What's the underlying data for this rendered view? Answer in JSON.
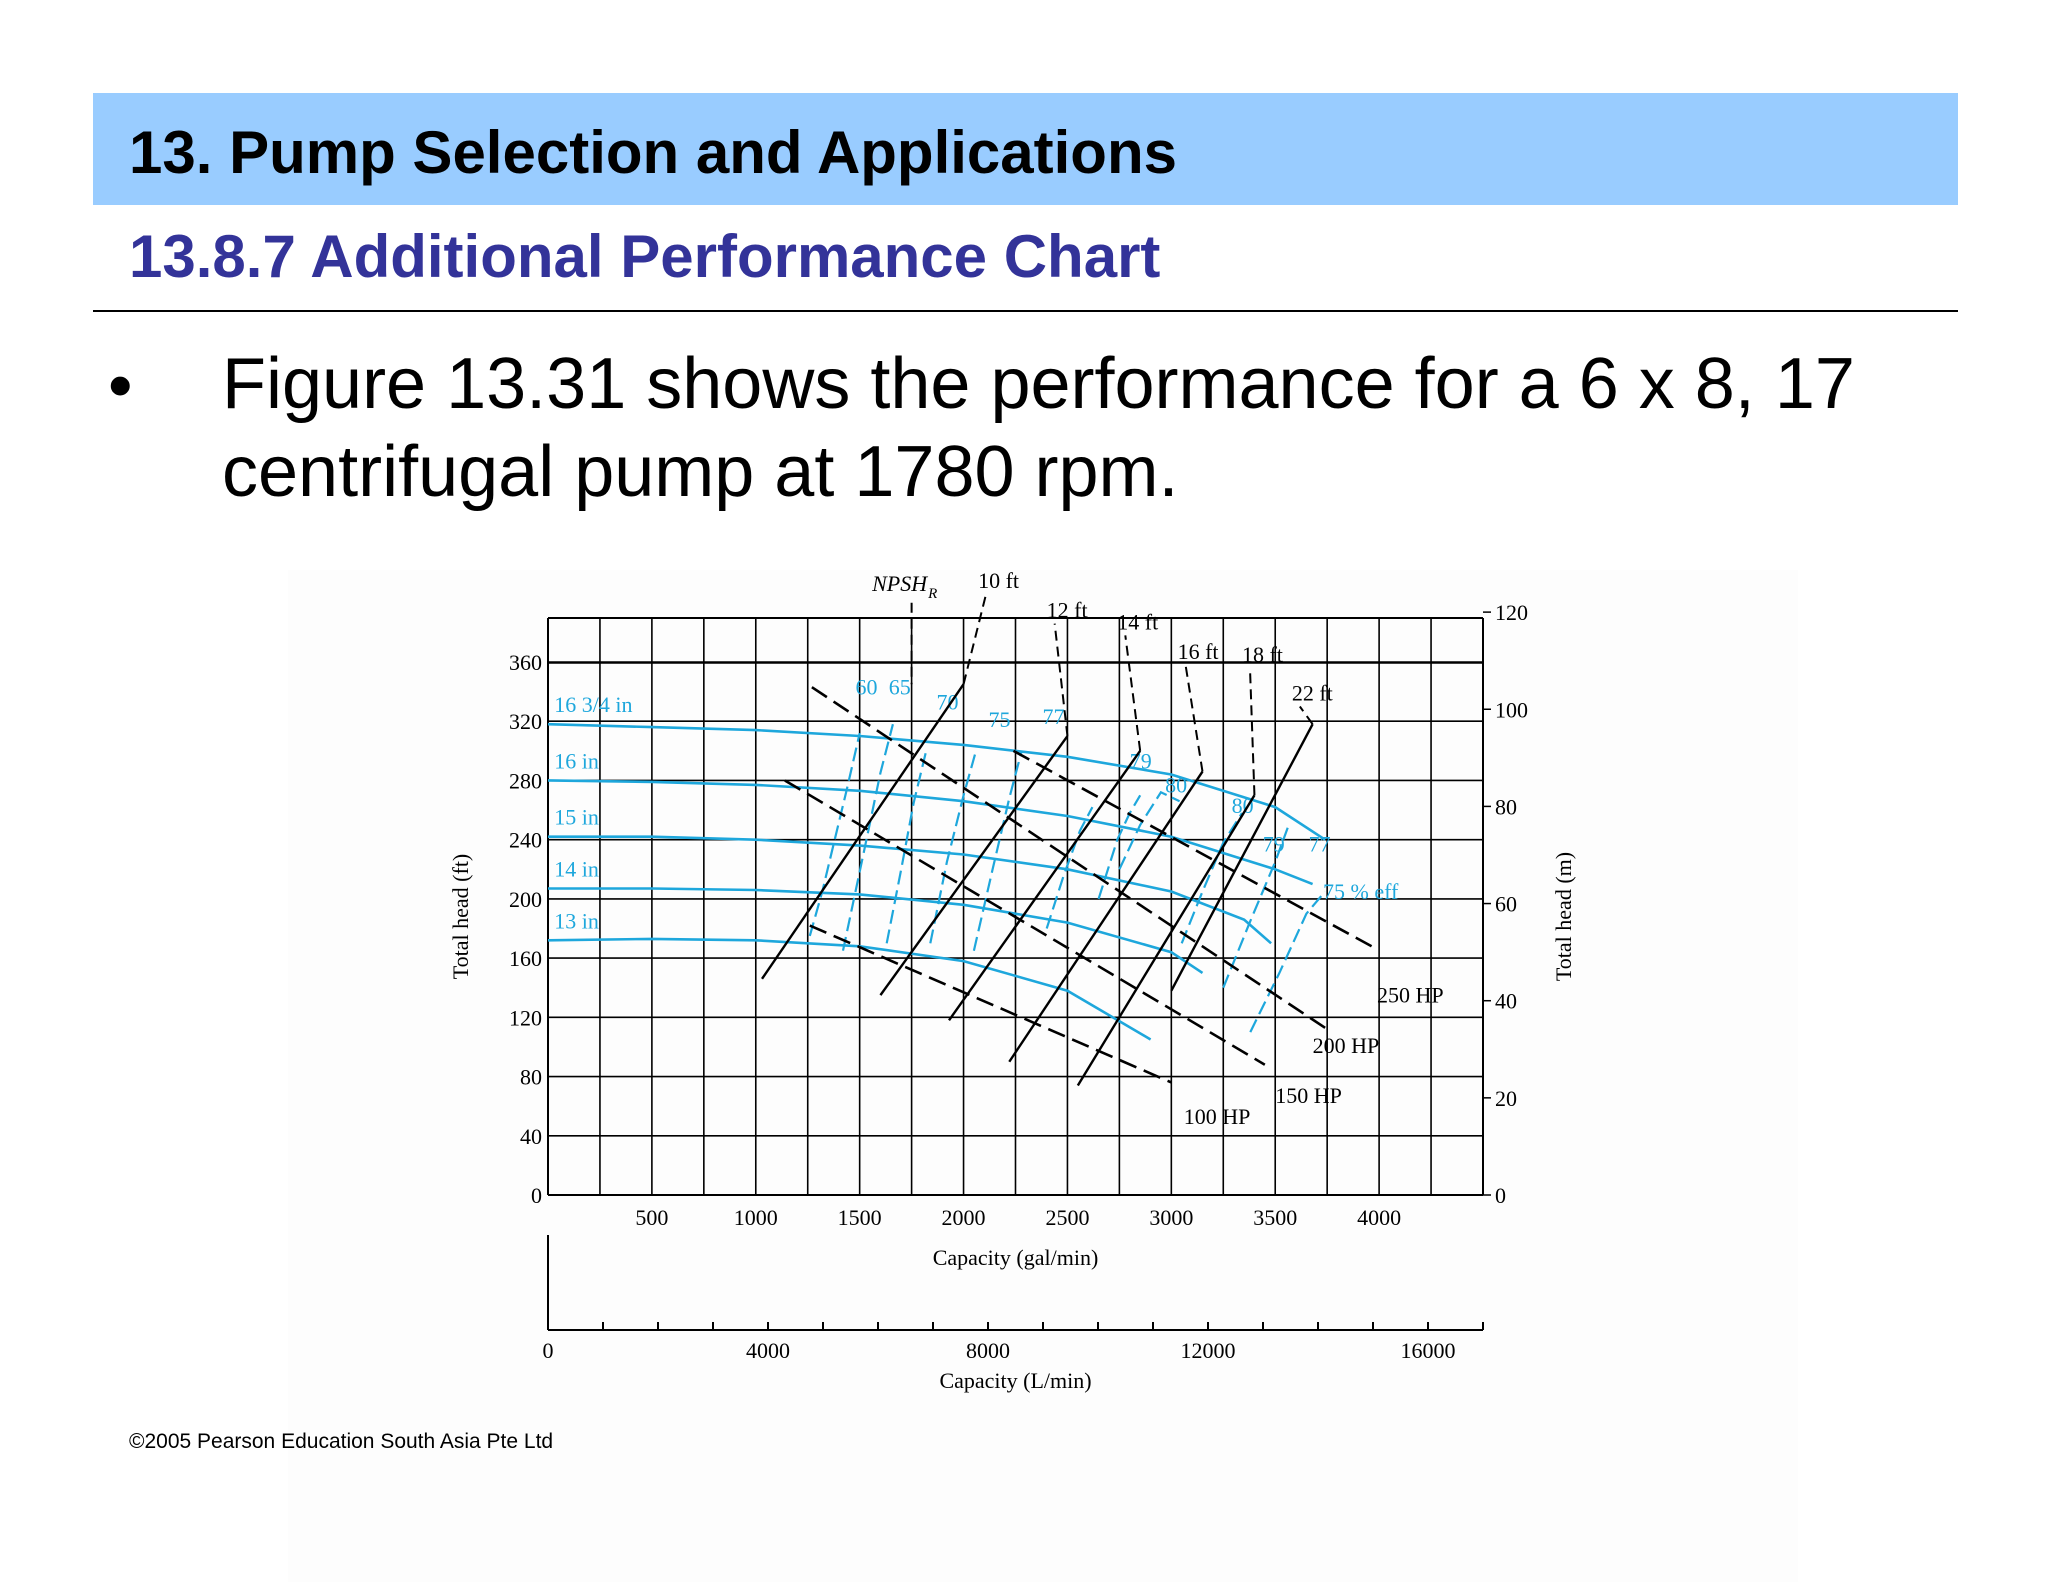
{
  "slide": {
    "title": "13. Pump Selection and Applications",
    "subtitle": "13.8.7 Additional Performance Chart",
    "bullet": "Figure 13.31 shows the performance for a 6 x 8, 17 centrifugal pump at 1780 rpm.",
    "bullet_symbol": "•",
    "copyright": "©2005 Pearson Education South Asia Pte Ltd"
  },
  "colors": {
    "header_band": "#99ccff",
    "subtitle": "#333399",
    "impeller_curves": "#1ea7dc",
    "power_npsh_lines": "#000000"
  },
  "chart_data": {
    "type": "line",
    "xlabel": "Capacity (gal/min)",
    "x2label": "Capacity (L/min)",
    "ylabel": "Total head (ft)",
    "y2label": "Total head (m)",
    "xlim": [
      0,
      4500
    ],
    "ylim": [
      0,
      360
    ],
    "x_ticks": [
      500,
      1000,
      1500,
      2000,
      2500,
      3000,
      3500,
      4000
    ],
    "x_tick_labels": [
      "500",
      "1000",
      "1500",
      "2000",
      "2500",
      "3000",
      "3500",
      "4000"
    ],
    "x2_ticks": [
      0,
      4000,
      8000,
      12000,
      16000
    ],
    "x2_tick_labels": [
      "0",
      "4000",
      "8000",
      "12000",
      "16000"
    ],
    "x2_lim": [
      0,
      17000
    ],
    "y_ticks": [
      0,
      40,
      80,
      120,
      160,
      200,
      240,
      280,
      320,
      360
    ],
    "y_tick_labels": [
      "0",
      "40",
      "80",
      "120",
      "160",
      "200",
      "240",
      "280",
      "320",
      "360"
    ],
    "y2_ticks": [
      0,
      20,
      40,
      60,
      80,
      100,
      120
    ],
    "y2_tick_labels": [
      "0",
      "20",
      "40",
      "60",
      "80",
      "100",
      "120"
    ],
    "grid": true,
    "impeller_series": [
      {
        "name": "16 3/4 in",
        "x": [
          0,
          500,
          1000,
          1500,
          2000,
          2500,
          3000,
          3500,
          3740
        ],
        "y": [
          318,
          316,
          314,
          310,
          304,
          296,
          284,
          262,
          240
        ]
      },
      {
        "name": "16 in",
        "x": [
          0,
          500,
          1000,
          1500,
          2000,
          2500,
          3000,
          3500,
          3680
        ],
        "y": [
          280,
          279,
          277,
          273,
          266,
          256,
          242,
          220,
          210
        ]
      },
      {
        "name": "15 in",
        "x": [
          0,
          500,
          1000,
          1500,
          2000,
          2500,
          3000,
          3350,
          3480
        ],
        "y": [
          242,
          242,
          240,
          236,
          230,
          220,
          205,
          186,
          170
        ]
      },
      {
        "name": "14 in",
        "x": [
          0,
          500,
          1000,
          1500,
          2000,
          2500,
          3000,
          3150
        ],
        "y": [
          207,
          207,
          206,
          203,
          196,
          184,
          164,
          150
        ]
      },
      {
        "name": "13 in",
        "x": [
          0,
          500,
          1000,
          1500,
          2000,
          2500,
          2900
        ],
        "y": [
          172,
          173,
          172,
          168,
          158,
          138,
          105
        ]
      }
    ],
    "efficiency_labels": [
      "60",
      "65",
      "70",
      "75",
      "77",
      "79",
      "80",
      "80",
      "79",
      "77",
      "75 % eff"
    ],
    "power_lines": [
      {
        "name": "100 HP",
        "x": [
          1260,
          3000
        ],
        "y": [
          182,
          76
        ]
      },
      {
        "name": "150 HP",
        "x": [
          1140,
          3450
        ],
        "y": [
          280,
          88
        ]
      },
      {
        "name": "200 HP",
        "x": [
          1270,
          3750
        ],
        "y": [
          343,
          112
        ]
      },
      {
        "name": "250 HP",
        "x": [
          2240,
          3990
        ],
        "y": [
          300,
          166
        ]
      }
    ],
    "npsh_title": "NPSH",
    "npsh_subscript": "R",
    "npsh_lines": [
      {
        "name": "10 ft",
        "x": [
          1030,
          2000
        ],
        "y": [
          146,
          345
        ]
      },
      {
        "name": "12 ft",
        "x": [
          1600,
          2500
        ],
        "y": [
          135,
          310
        ]
      },
      {
        "name": "14 ft",
        "x": [
          1930,
          2850
        ],
        "y": [
          118,
          300
        ]
      },
      {
        "name": "16 ft",
        "x": [
          2220,
          3150
        ],
        "y": [
          90,
          286
        ]
      },
      {
        "name": "18 ft",
        "x": [
          2550,
          3400
        ],
        "y": [
          74,
          270
        ]
      },
      {
        "name": "22 ft",
        "x": [
          3000,
          3680
        ],
        "y": [
          138,
          318
        ]
      }
    ]
  }
}
